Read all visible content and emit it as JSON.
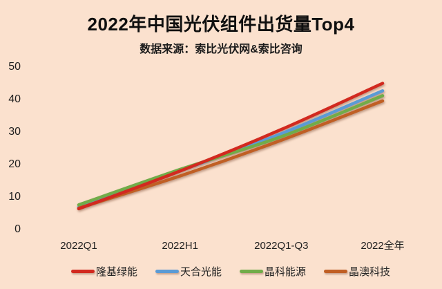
{
  "header": {
    "title": "2022年中国光伏组件出货量Top4",
    "subtitle": "数据来源：索比光伏网&索比咨询"
  },
  "colors": {
    "background": "#fbe1ce",
    "title_text": "#0f0f0f",
    "axis_text": "#1f1f1f"
  },
  "chart_data": {
    "type": "line",
    "title": "2022年中国光伏组件出货量Top4",
    "subtitle": "数据来源：索比光伏网&索比咨询",
    "categories": [
      "2022Q1",
      "2022H1",
      "2022Q1-Q3",
      "2022全年"
    ],
    "series": [
      {
        "name": "隆基绿能",
        "color": "#d2291f",
        "values": [
          6.4,
          18.0,
          30.8,
          45.0
        ]
      },
      {
        "name": "天合光能",
        "color": "#5b9bd5",
        "values": [
          6.9,
          18.1,
          29.5,
          42.7
        ]
      },
      {
        "name": "晶科能源",
        "color": "#71ac49",
        "values": [
          7.6,
          18.5,
          28.6,
          41.2
        ]
      },
      {
        "name": "晶澳科技",
        "color": "#c05f24",
        "values": [
          6.6,
          16.5,
          27.5,
          39.6
        ]
      }
    ],
    "yticks": [
      0,
      10,
      20,
      30,
      40,
      50
    ],
    "ylim": [
      0,
      50
    ],
    "xlabel": "",
    "ylabel": "",
    "grid": false,
    "axis_lines": false,
    "legend_position": "bottom"
  }
}
